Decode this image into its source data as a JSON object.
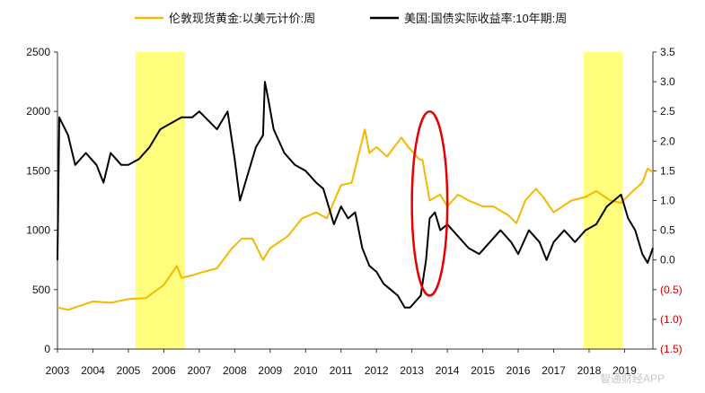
{
  "chart_data": {
    "type": "line",
    "title": "",
    "xlabel": "",
    "ylabel_left": "",
    "ylabel_right": "",
    "x_ticks": [
      "2003",
      "2004",
      "2005",
      "2006",
      "2007",
      "2008",
      "2009",
      "2010",
      "2011",
      "2012",
      "2013",
      "2014",
      "2015",
      "2016",
      "2017",
      "2018",
      "2019"
    ],
    "x_range": [
      2003.0,
      2019.8
    ],
    "y_left": {
      "range": [
        0,
        2500
      ],
      "ticks": [
        "0",
        "500",
        "1000",
        "1500",
        "2000",
        "2500"
      ]
    },
    "y_right": {
      "range": [
        -1.5,
        3.5
      ],
      "ticks": [
        "3.5",
        "3.0",
        "2.5",
        "2.0",
        "1.5",
        "1.0",
        "0.5",
        "0.0",
        "(0.5)",
        "(1.0)",
        "(1.5)"
      ]
    },
    "negative_tick_color": "#cc0000",
    "legend_position": "top",
    "series": [
      {
        "name": "伦敦现货黄金:以美元计价:周",
        "axis": "left",
        "color": "#f5b800",
        "x": [
          2003.0,
          2003.3,
          2003.6,
          2004.0,
          2004.5,
          2005.0,
          2005.5,
          2006.0,
          2006.37,
          2006.5,
          2006.8,
          2007.0,
          2007.5,
          2007.9,
          2008.2,
          2008.5,
          2008.8,
          2009.0,
          2009.5,
          2009.9,
          2010.3,
          2010.6,
          2011.0,
          2011.3,
          2011.67,
          2011.8,
          2012.0,
          2012.3,
          2012.7,
          2012.9,
          2013.2,
          2013.3,
          2013.5,
          2013.8,
          2014.0,
          2014.3,
          2014.6,
          2015.0,
          2015.3,
          2015.7,
          2015.95,
          2016.2,
          2016.5,
          2016.7,
          2017.0,
          2017.5,
          2017.9,
          2018.2,
          2018.6,
          2018.9,
          2019.2,
          2019.5,
          2019.65,
          2019.8
        ],
        "values": [
          350,
          330,
          360,
          400,
          390,
          420,
          430,
          540,
          700,
          600,
          620,
          640,
          680,
          840,
          930,
          930,
          750,
          850,
          950,
          1100,
          1150,
          1100,
          1380,
          1400,
          1850,
          1650,
          1700,
          1620,
          1780,
          1700,
          1600,
          1590,
          1250,
          1300,
          1200,
          1300,
          1250,
          1200,
          1200,
          1130,
          1060,
          1250,
          1350,
          1280,
          1150,
          1250,
          1280,
          1330,
          1250,
          1230,
          1320,
          1400,
          1520,
          1490
        ]
      },
      {
        "name": "美国:国债实际收益率:10年期:周",
        "axis": "right",
        "color": "#000000",
        "x": [
          2003.0,
          2003.05,
          2003.3,
          2003.5,
          2003.8,
          2004.1,
          2004.3,
          2004.5,
          2004.8,
          2005.0,
          2005.3,
          2005.6,
          2005.9,
          2006.2,
          2006.5,
          2006.8,
          2007.0,
          2007.5,
          2007.8,
          2008.0,
          2008.15,
          2008.35,
          2008.6,
          2008.8,
          2008.85,
          2008.95,
          2009.1,
          2009.4,
          2009.7,
          2010.0,
          2010.3,
          2010.5,
          2010.8,
          2011.0,
          2011.2,
          2011.4,
          2011.6,
          2011.8,
          2012.0,
          2012.2,
          2012.4,
          2012.6,
          2012.8,
          2012.95,
          2013.1,
          2013.25,
          2013.4,
          2013.5,
          2013.65,
          2013.8,
          2014.0,
          2014.3,
          2014.6,
          2014.9,
          2015.2,
          2015.5,
          2015.8,
          2016.0,
          2016.3,
          2016.6,
          2016.8,
          2017.0,
          2017.3,
          2017.6,
          2017.9,
          2018.2,
          2018.5,
          2018.9,
          2019.1,
          2019.3,
          2019.5,
          2019.65,
          2019.8
        ],
        "values": [
          0.0,
          2.4,
          2.1,
          1.6,
          1.8,
          1.6,
          1.3,
          1.8,
          1.6,
          1.6,
          1.7,
          1.9,
          2.2,
          2.3,
          2.4,
          2.4,
          2.5,
          2.2,
          2.5,
          1.7,
          1.0,
          1.4,
          1.9,
          2.1,
          3.0,
          2.7,
          2.2,
          1.8,
          1.6,
          1.5,
          1.3,
          1.2,
          0.6,
          0.9,
          0.7,
          0.8,
          0.2,
          -0.1,
          -0.2,
          -0.4,
          -0.5,
          -0.6,
          -0.8,
          -0.8,
          -0.7,
          -0.6,
          0.0,
          0.7,
          0.8,
          0.5,
          0.6,
          0.4,
          0.2,
          0.1,
          0.3,
          0.5,
          0.3,
          0.1,
          0.5,
          0.3,
          0.0,
          0.3,
          0.5,
          0.3,
          0.5,
          0.6,
          0.9,
          1.1,
          0.7,
          0.5,
          0.1,
          -0.05,
          0.2
        ]
      }
    ],
    "highlight_bands": [
      {
        "x0": 2005.2,
        "x1": 2006.6,
        "color": "#ffff66"
      },
      {
        "x0": 2017.85,
        "x1": 2018.95,
        "color": "#ffff66"
      }
    ],
    "annotations": [
      {
        "type": "ellipse",
        "cx": 2013.5,
        "cy_right": 0.95,
        "rx_years": 0.5,
        "ry_right": 1.55,
        "color": "#e60000"
      }
    ],
    "watermark": "智通财经APP"
  }
}
